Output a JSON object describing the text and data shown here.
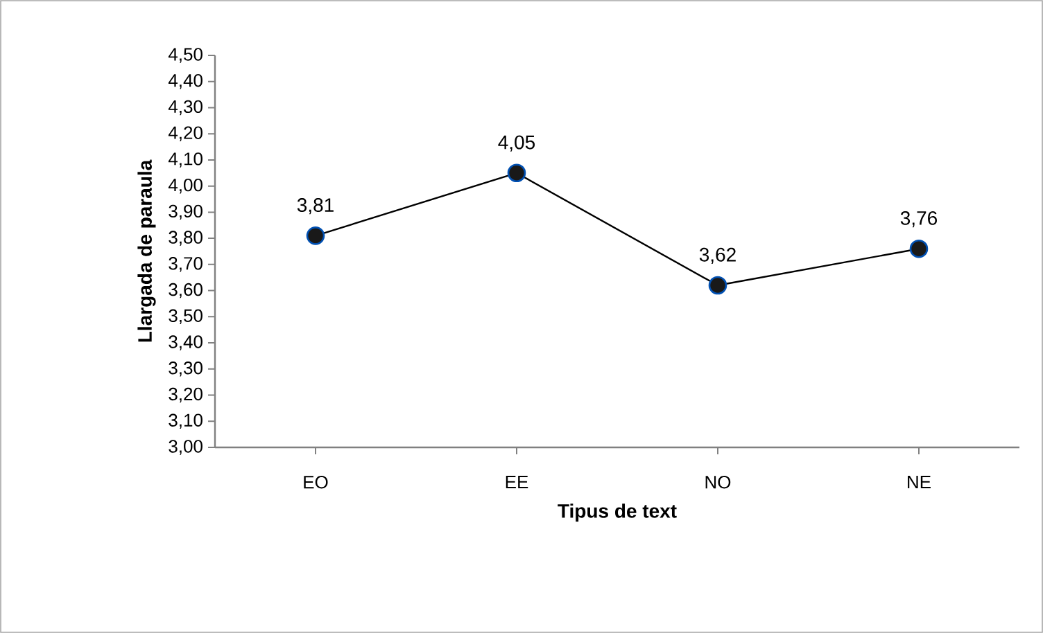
{
  "chart_data": {
    "type": "line",
    "xlabel": "Tipus de text",
    "ylabel": "Llargada de paraula",
    "categories": [
      "EO",
      "EE",
      "NO",
      "NE"
    ],
    "series": [
      {
        "color": "#000000",
        "values": [
          3.81,
          4.05,
          3.62,
          3.76
        ],
        "value_labels": [
          "3,81",
          "4,05",
          "3,62",
          "3,76"
        ]
      }
    ],
    "ylim": [
      3.0,
      4.5
    ],
    "yticks": [
      {
        "value": 3.0,
        "label": "3,00"
      },
      {
        "value": 3.1,
        "label": "3,10"
      },
      {
        "value": 3.2,
        "label": "3,20"
      },
      {
        "value": 3.3,
        "label": "3,30"
      },
      {
        "value": 3.4,
        "label": "3,40"
      },
      {
        "value": 3.5,
        "label": "3,50"
      },
      {
        "value": 3.6,
        "label": "3,60"
      },
      {
        "value": 3.7,
        "label": "3,70"
      },
      {
        "value": 3.8,
        "label": "3,80"
      },
      {
        "value": 3.9,
        "label": "3,90"
      },
      {
        "value": 4.0,
        "label": "4,00"
      },
      {
        "value": 4.1,
        "label": "4,10"
      },
      {
        "value": 4.2,
        "label": "4,20"
      },
      {
        "value": 4.3,
        "label": "4,30"
      },
      {
        "value": 4.4,
        "label": "4,40"
      },
      {
        "value": 4.5,
        "label": "4,50"
      }
    ],
    "grid": false,
    "marker": "circle",
    "line_style": "solid"
  }
}
